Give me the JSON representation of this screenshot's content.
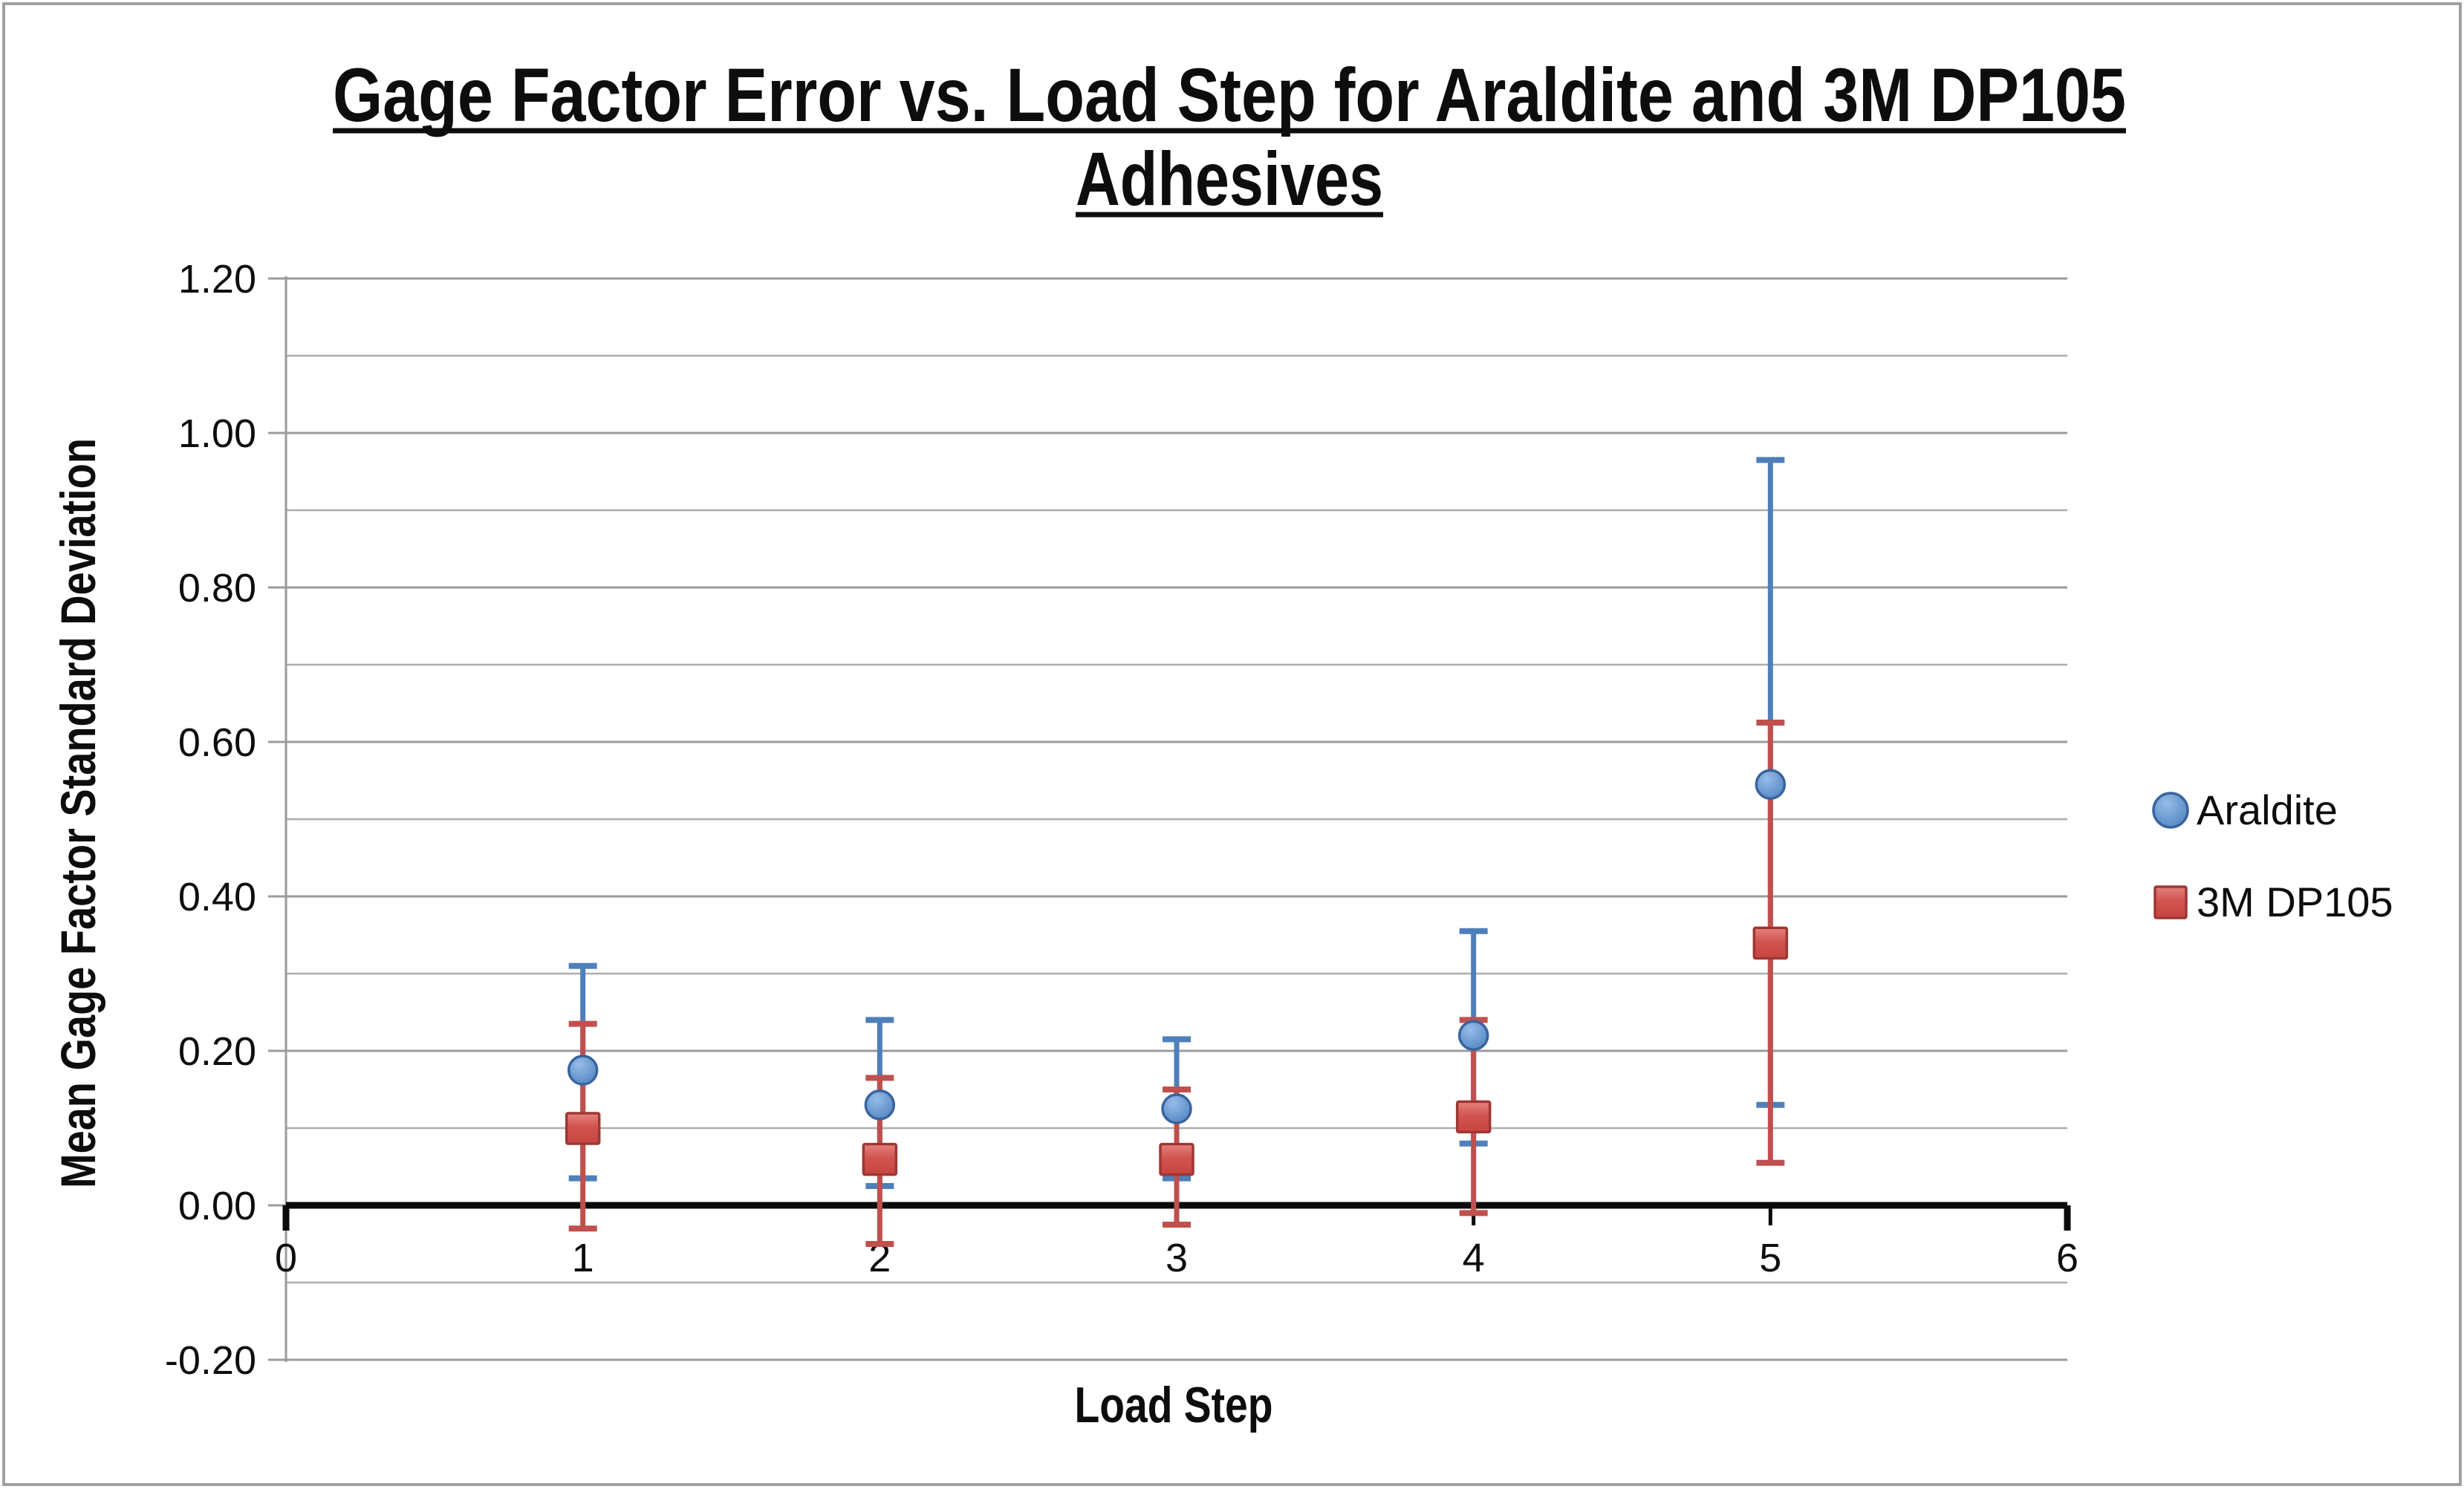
{
  "title": {
    "line1": "Gage Factor Error vs. Load Step for Araldite and 3M DP105",
    "line2": "Adhesives"
  },
  "axes": {
    "y": {
      "label": "Mean Gage Factor Standard Deviation",
      "tick_labels": [
        "1.20",
        "1.00",
        "0.80",
        "0.60",
        "0.40",
        "0.20",
        "0.00",
        "-0.20"
      ],
      "min": -0.2,
      "max": 1.2,
      "major_step": 0.2,
      "minor_step": 0.1
    },
    "x": {
      "label": "Load Step",
      "tick_labels": [
        "0",
        "1",
        "2",
        "3",
        "4",
        "5",
        "6"
      ],
      "min": 0,
      "max": 6,
      "major_step": 1
    }
  },
  "legend": [
    {
      "label": "Araldite",
      "marker": "circle"
    },
    {
      "label": "3M DP105",
      "marker": "square"
    }
  ],
  "chart_data": {
    "type": "scatter",
    "title": "Gage Factor Error vs. Load Step for Araldite and 3M DP105 Adhesives",
    "xlabel": "Load Step",
    "ylabel": "Mean Gage Factor Standard Deviation",
    "xlim": [
      0,
      6
    ],
    "ylim": [
      -0.2,
      1.2
    ],
    "grid": true,
    "legend_position": "right",
    "x": [
      1,
      2,
      3,
      4,
      5
    ],
    "series": [
      {
        "name": "Araldite",
        "marker": "circle",
        "y": [
          0.175,
          0.13,
          0.125,
          0.22,
          0.545
        ],
        "y_upper": [
          0.31,
          0.24,
          0.215,
          0.355,
          0.965
        ],
        "y_lower": [
          0.035,
          0.025,
          0.035,
          0.08,
          0.13
        ]
      },
      {
        "name": "3M DP105",
        "marker": "square",
        "y": [
          0.1,
          0.06,
          0.06,
          0.115,
          0.34
        ],
        "y_upper": [
          0.235,
          0.165,
          0.15,
          0.24,
          0.625
        ],
        "y_lower": [
          -0.03,
          -0.05,
          -0.025,
          -0.01,
          0.055
        ]
      }
    ]
  },
  "colors": {
    "araldite_fill": "#6D9BD1",
    "araldite_fill_light": "#8FB6E4",
    "araldite_border": "#38649F",
    "araldite_errorbar": "#4E7FBA",
    "dp105_fill": "#CE4B46",
    "dp105_fill_light": "#E4837E",
    "dp105_border": "#9E3734",
    "dp105_errorbar": "#C0504D",
    "gridline_minor": "#ADADAD",
    "gridline_major": "#9B9B9B",
    "axis_line": "#9B9B9B",
    "zero_line": "#0A0A0A",
    "text": "#0D0D0D",
    "frame_border": "#A0A0A0",
    "background": "#FFFFFF"
  }
}
